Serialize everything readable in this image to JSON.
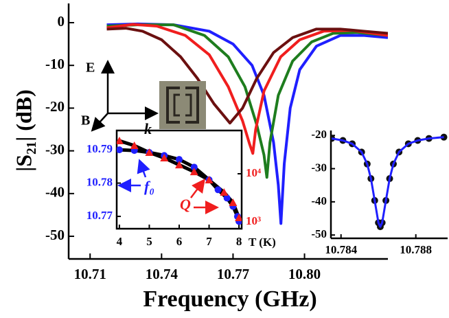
{
  "chart_data": [
    {
      "type": "line",
      "x_label": "Frequency (GHz)",
      "y_label": "|S₂₁| (dB)",
      "xlim": [
        10.701,
        10.835
      ],
      "ylim": [
        -55.3,
        4.5
      ],
      "xticks": [
        10.71,
        10.74,
        10.77,
        {
          "value": 10.8,
          "label": "10.80"
        }
      ],
      "yticks": [
        0,
        -10,
        -20,
        -30,
        -40,
        -50
      ],
      "annotations": [
        "E",
        "B",
        "k"
      ],
      "series": [
        {
          "color": "#1f1fff",
          "x": [
            10.717,
            10.73,
            10.745,
            10.76,
            10.77,
            10.778,
            10.783,
            10.787,
            10.789,
            10.7901,
            10.7915,
            10.794,
            10.798,
            10.805,
            10.815,
            10.825,
            10.835
          ],
          "values": [
            -0.5,
            -0.3,
            -0.5,
            -2,
            -5,
            -10,
            -17,
            -28,
            -38,
            -47,
            -33,
            -20,
            -11,
            -5.5,
            -3,
            -3,
            -3.5
          ]
        },
        {
          "color": "#1e7d1e",
          "x": [
            10.717,
            10.73,
            10.745,
            10.758,
            10.768,
            10.775,
            10.78,
            10.783,
            10.7842,
            10.7855,
            10.789,
            10.795,
            10.803,
            10.812,
            10.822,
            10.835
          ],
          "values": [
            -0.8,
            -0.5,
            -0.5,
            -3,
            -8,
            -15,
            -24,
            -31,
            -36.2,
            -28,
            -17,
            -9,
            -4.5,
            -2.5,
            -2.3,
            -3
          ]
        },
        {
          "color": "#f01e1e",
          "x": [
            10.717,
            10.728,
            10.738,
            10.75,
            10.76,
            10.768,
            10.774,
            10.777,
            10.7783,
            10.7795,
            10.783,
            10.79,
            10.798,
            10.808,
            10.82,
            10.835
          ],
          "values": [
            -1.2,
            -0.4,
            -0.8,
            -3,
            -7.5,
            -15,
            -23,
            -28.5,
            -30.6,
            -25,
            -16,
            -8,
            -4,
            -2,
            -1.8,
            -3
          ]
        },
        {
          "color": "#6b1010",
          "x": [
            10.717,
            10.725,
            10.732,
            10.74,
            10.748,
            10.755,
            10.762,
            10.7687,
            10.774,
            10.78,
            10.787,
            10.795,
            10.805,
            10.815,
            10.825,
            10.835
          ],
          "values": [
            -1.5,
            -1.3,
            -2,
            -4,
            -8,
            -13,
            -19,
            -23.5,
            -20,
            -13,
            -7,
            -3.5,
            -1.5,
            -1.5,
            -2,
            -2.5
          ]
        }
      ]
    },
    {
      "type": "line",
      "x_label": "T (K)",
      "frame": true,
      "xlim": [
        3.91,
        8.09
      ],
      "ylim": [
        10.7663,
        10.7958
      ],
      "y2lim": [
        720,
        79400
      ],
      "y2log": true,
      "xticks": [
        4,
        5,
        6,
        7,
        8
      ],
      "yticks": [
        10.79,
        10.78,
        10.77
      ],
      "y2ticks": [
        {
          "value": 1000,
          "label": "10³"
        },
        {
          "value": 10000,
          "label": "10⁴"
        }
      ],
      "ytick_color": "#1f1fff",
      "y2tick_color": "#f01e1e",
      "annotations": [
        "f₀",
        "Q"
      ],
      "series": [
        {
          "color": "#000000",
          "width": 5,
          "x": [
            4,
            4.5,
            5,
            5.5,
            6,
            6.5,
            7,
            7.3,
            7.6,
            7.8,
            7.95,
            8
          ],
          "values": [
            10.79,
            10.7898,
            10.7892,
            10.7883,
            10.7871,
            10.7848,
            10.781,
            10.778,
            10.7755,
            10.773,
            10.77,
            10.7685
          ]
        },
        {
          "color": "#000000",
          "width": 5,
          "axis": "y2",
          "x": [
            4,
            4.5,
            5,
            5.5,
            6,
            6.5,
            7,
            7.5,
            7.8,
            8
          ],
          "values": [
            48500,
            38500,
            27700,
            21300,
            15300,
            11000,
            7430,
            4110,
            2510,
            1220
          ]
        },
        {
          "color": "#1f1fff",
          "marker": "circle",
          "x": [
            4,
            4.5,
            5,
            5.5,
            6,
            6.5,
            7,
            7.3,
            7.6,
            7.8,
            7.95,
            8
          ],
          "values": [
            10.79,
            10.7898,
            10.7892,
            10.7883,
            10.7871,
            10.7848,
            10.781,
            10.778,
            10.7755,
            10.773,
            10.77,
            10.7685
          ]
        },
        {
          "color": "#f01e1e",
          "marker": "triangle",
          "axis": "y2",
          "x": [
            4,
            4.5,
            5,
            5.5,
            6,
            6.5,
            7,
            7.5,
            7.8,
            8
          ],
          "values": [
            48500,
            38500,
            27700,
            21300,
            15300,
            11000,
            7430,
            4110,
            2510,
            1220
          ]
        }
      ]
    },
    {
      "type": "line",
      "xlim": [
        10.78346,
        10.7897
      ],
      "ylim": [
        -51,
        -18.5
      ],
      "xticks": [
        10.784,
        10.788
      ],
      "yticks": [
        -20,
        -30,
        -40,
        -50
      ],
      "series": [
        {
          "color": "#111111",
          "marker": "circle",
          "x": [
            10.7835,
            10.7841,
            10.7846,
            10.7851,
            10.7854,
            10.7856,
            10.7858,
            10.786,
            10.7861,
            10.7862,
            10.7864,
            10.7866,
            10.7868,
            10.7871,
            10.7876,
            10.7881,
            10.7887,
            10.7895
          ],
          "values": [
            -20.9,
            -21.5,
            -22.5,
            -25,
            -28.6,
            -33,
            -39.6,
            -46.3,
            -47.5,
            -46.3,
            -39.6,
            -33,
            -28.6,
            -25,
            -22.5,
            -21.5,
            -20.9,
            -20.5
          ]
        },
        {
          "color": "#1f1fff",
          "width": 3,
          "x": [
            10.7835,
            10.7841,
            10.7846,
            10.7851,
            10.7854,
            10.7856,
            10.7858,
            10.786,
            10.7861,
            10.7862,
            10.7864,
            10.7866,
            10.7868,
            10.7871,
            10.7876,
            10.7881,
            10.7887,
            10.7895
          ],
          "values": [
            -20.9,
            -21.5,
            -22.5,
            -25,
            -28.6,
            -33,
            -39.6,
            -46.3,
            -47.5,
            -46.3,
            -39.6,
            -33,
            -28.6,
            -25,
            -22.5,
            -21.5,
            -20.9,
            -20.5
          ]
        }
      ]
    }
  ]
}
